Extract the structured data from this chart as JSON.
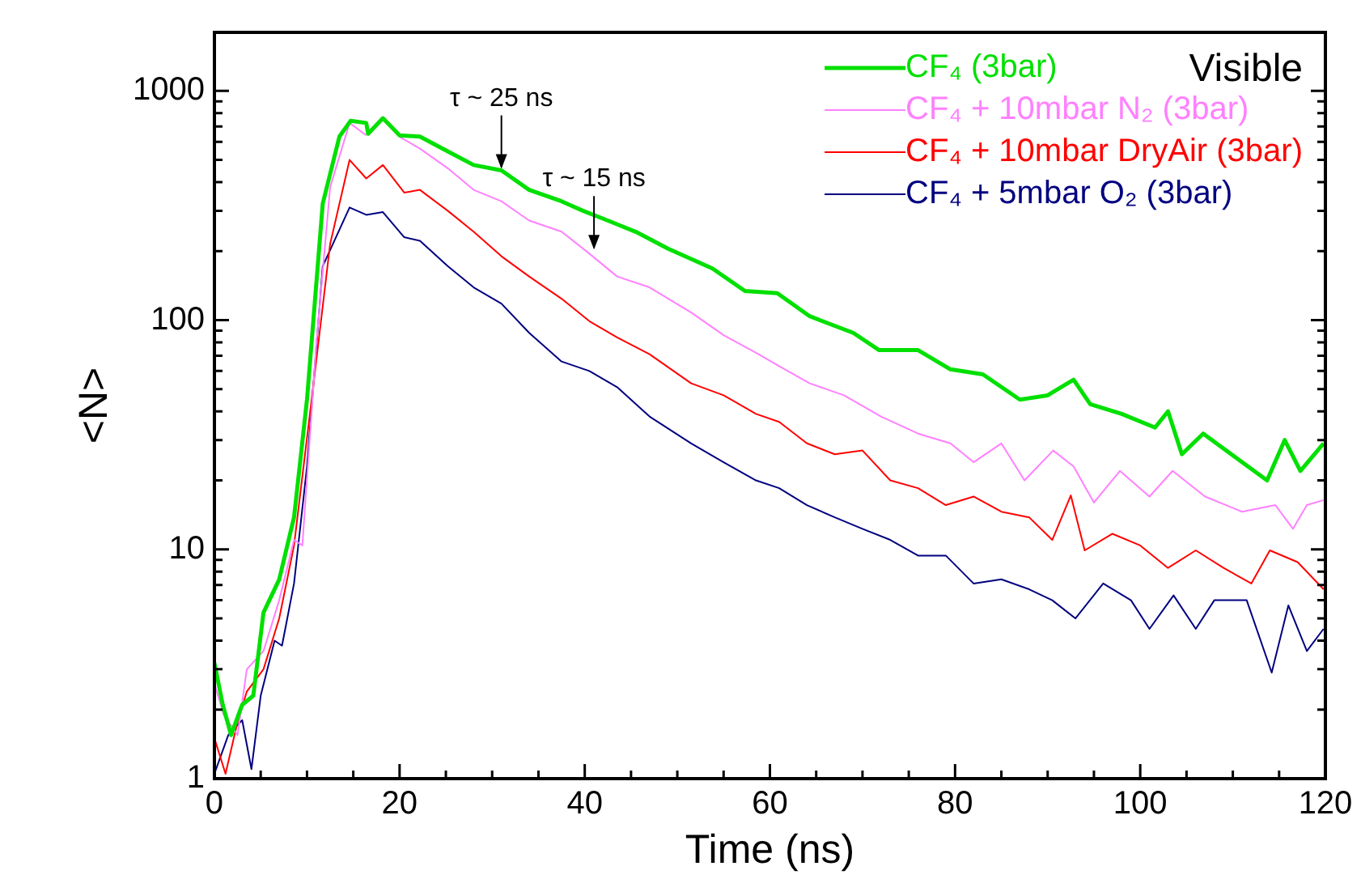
{
  "chart_data": {
    "type": "line",
    "xlabel": "Time (ns)",
    "ylabel": "<N>",
    "log": "y",
    "grid": false,
    "legend": "top right",
    "marker": "none",
    "line_style": "solid",
    "xlim": [
      0,
      120
    ],
    "ylim": [
      1,
      1800
    ],
    "xticks": [
      0,
      {
        "value": 5,
        "label": null
      },
      {
        "value": 10,
        "label": null
      },
      {
        "value": 15,
        "label": null
      },
      20,
      {
        "value": 25,
        "label": null
      },
      {
        "value": 30,
        "label": null
      },
      {
        "value": 35,
        "label": null
      },
      40,
      {
        "value": 45,
        "label": null
      },
      {
        "value": 50,
        "label": null
      },
      {
        "value": 55,
        "label": null
      },
      60,
      {
        "value": 65,
        "label": null
      },
      {
        "value": 70,
        "label": null
      },
      {
        "value": 75,
        "label": null
      },
      80,
      {
        "value": 85,
        "label": null
      },
      {
        "value": 90,
        "label": null
      },
      {
        "value": 95,
        "label": null
      },
      100,
      {
        "value": 105,
        "label": null
      },
      {
        "value": 110,
        "label": null
      },
      {
        "value": 115,
        "label": null
      },
      120
    ],
    "yticks": [
      1,
      {
        "value": 2,
        "label": null
      },
      {
        "value": 3,
        "label": null
      },
      {
        "value": 4,
        "label": null
      },
      {
        "value": 5,
        "label": null
      },
      {
        "value": 6,
        "label": null
      },
      {
        "value": 7,
        "label": null
      },
      {
        "value": 8,
        "label": null
      },
      {
        "value": 9,
        "label": null
      },
      10,
      {
        "value": 20,
        "label": null
      },
      {
        "value": 30,
        "label": null
      },
      {
        "value": 40,
        "label": null
      },
      {
        "value": 50,
        "label": null
      },
      {
        "value": 60,
        "label": null
      },
      {
        "value": 70,
        "label": null
      },
      {
        "value": 80,
        "label": null
      },
      {
        "value": 90,
        "label": null
      },
      100,
      {
        "value": 200,
        "label": null
      },
      {
        "value": 300,
        "label": null
      },
      {
        "value": 400,
        "label": null
      },
      {
        "value": 500,
        "label": null
      },
      {
        "value": 600,
        "label": null
      },
      {
        "value": 700,
        "label": null
      },
      {
        "value": 800,
        "label": null
      },
      {
        "value": 900,
        "label": null
      },
      1000
    ],
    "annotations": [
      "Visible",
      {
        "text": "τ ~ 25 ns",
        "x": 31,
        "y": 450
      },
      {
        "text": "τ ~ 15 ns",
        "x": 41,
        "y": 200
      }
    ],
    "series": [
      {
        "name": "CF₄ (3bar)",
        "color": "#00e000",
        "x": [
          0,
          0.9,
          1.8,
          3,
          4.2,
          5.3,
          7,
          8.6,
          10,
          11.7,
          13.5,
          14.7,
          16.4,
          16.6,
          18.2,
          20,
          22.2,
          25.2,
          28,
          31,
          34,
          37.5,
          39.8,
          42,
          45.5,
          49,
          53.8,
          57.3,
          60.8,
          64.3,
          69,
          71.8,
          76,
          79.5,
          83,
          87,
          90,
          92.8,
          94.6,
          98,
          101.6,
          103,
          104.5,
          106.8,
          111,
          113.7,
          115.6,
          117.3,
          119.8
        ],
        "values": [
          3.2,
          2.1,
          1.55,
          2.1,
          2.3,
          5.3,
          7.4,
          13.8,
          45,
          322,
          632,
          740,
          725,
          650,
          760,
          640,
          632,
          545,
          475,
          450,
          370,
          330,
          300,
          277,
          243,
          205,
          168,
          134,
          131,
          104,
          88,
          74,
          74,
          61,
          58,
          45,
          47,
          55,
          43,
          39,
          34,
          40,
          26,
          32,
          24,
          20,
          30,
          22,
          29
        ]
      },
      {
        "name": "CF₄ + 10mbar N₂ (3bar)",
        "color": "#ff80ff",
        "x": [
          0,
          1,
          2.5,
          3.5,
          5.3,
          7,
          8.6,
          9.5,
          11,
          12.5,
          14.6,
          16.4,
          18.2,
          20,
          22.2,
          25.2,
          28,
          31,
          34,
          37.5,
          40.5,
          43.5,
          47,
          51.5,
          55,
          58.5,
          61,
          64.3,
          68,
          72,
          76,
          79.5,
          82,
          85,
          87.5,
          90.6,
          92.8,
          95,
          97.8,
          101,
          103.5,
          107,
          111,
          114.6,
          116.5,
          118,
          119.8
        ],
        "values": [
          2.6,
          1.9,
          1.55,
          3,
          3.6,
          6,
          11,
          10.4,
          78,
          380,
          725,
          640,
          null,
          630,
          560,
          460,
          370,
          330,
          272,
          243,
          195,
          155,
          139,
          108,
          86,
          72,
          63,
          53,
          47,
          38,
          32,
          29,
          24,
          29,
          20,
          27,
          23,
          16,
          22,
          17,
          22,
          17,
          14.6,
          15.6,
          12.3,
          15.6,
          16.4
        ]
      },
      {
        "name": "CF₄ + 10mbar DryAir (3bar)",
        "color": "#ff0000",
        "x": [
          0,
          1.2,
          2.4,
          3.5,
          5.3,
          7,
          8.6,
          10.5,
          12.5,
          14.6,
          16.4,
          18.2,
          20.5,
          22.2,
          25.2,
          28,
          31,
          34,
          37.5,
          40.5,
          43.5,
          47,
          51.5,
          55,
          58.5,
          61,
          64,
          67,
          70,
          73,
          76,
          79,
          82,
          85,
          88,
          90.5,
          92.5,
          94,
          97,
          100,
          103,
          106,
          109,
          112,
          114,
          117,
          119.8
        ],
        "values": [
          1.5,
          1.05,
          1.7,
          2.4,
          3,
          5,
          10.4,
          45,
          215,
          500,
          415,
          475,
          360,
          370,
          300,
          243,
          190,
          155,
          124,
          99,
          84,
          71,
          53,
          47,
          39,
          36,
          29,
          26,
          27,
          20,
          18.5,
          15.6,
          17,
          14.6,
          13.8,
          11,
          17.2,
          9.9,
          11.7,
          10.4,
          8.3,
          9.9,
          8.3,
          7.1,
          9.9,
          8.8,
          6.7
        ]
      },
      {
        "name": "CF₄ + 5mbar O₂ (3bar)",
        "color": "#000080",
        "x": [
          0,
          1.5,
          3,
          4,
          5,
          6.5,
          7.3,
          8.6,
          10,
          11.7,
          14.6,
          16.4,
          18.2,
          20.5,
          22.2,
          25.2,
          28,
          31,
          34,
          37.5,
          40.5,
          43.5,
          47,
          51.5,
          55,
          58.5,
          61,
          64,
          67,
          70,
          73,
          76,
          79,
          82,
          85,
          88,
          90.5,
          93,
          96,
          99,
          101,
          103.6,
          106,
          108,
          111.5,
          114.2,
          116,
          118,
          119.8
        ],
        "values": [
          1.05,
          1.55,
          1.8,
          1.1,
          2.3,
          4,
          3.8,
          7.1,
          23,
          172,
          310,
          288,
          296,
          230,
          222,
          172,
          139,
          118,
          88,
          66,
          60,
          51,
          38,
          29,
          24,
          20,
          18.5,
          15.6,
          13.8,
          12.3,
          11,
          9.4,
          9.4,
          7.1,
          7.4,
          6.7,
          6,
          5,
          7.1,
          6,
          4.5,
          6.3,
          4.5,
          6,
          6,
          2.9,
          5.7,
          3.6,
          4.5
        ]
      }
    ]
  }
}
